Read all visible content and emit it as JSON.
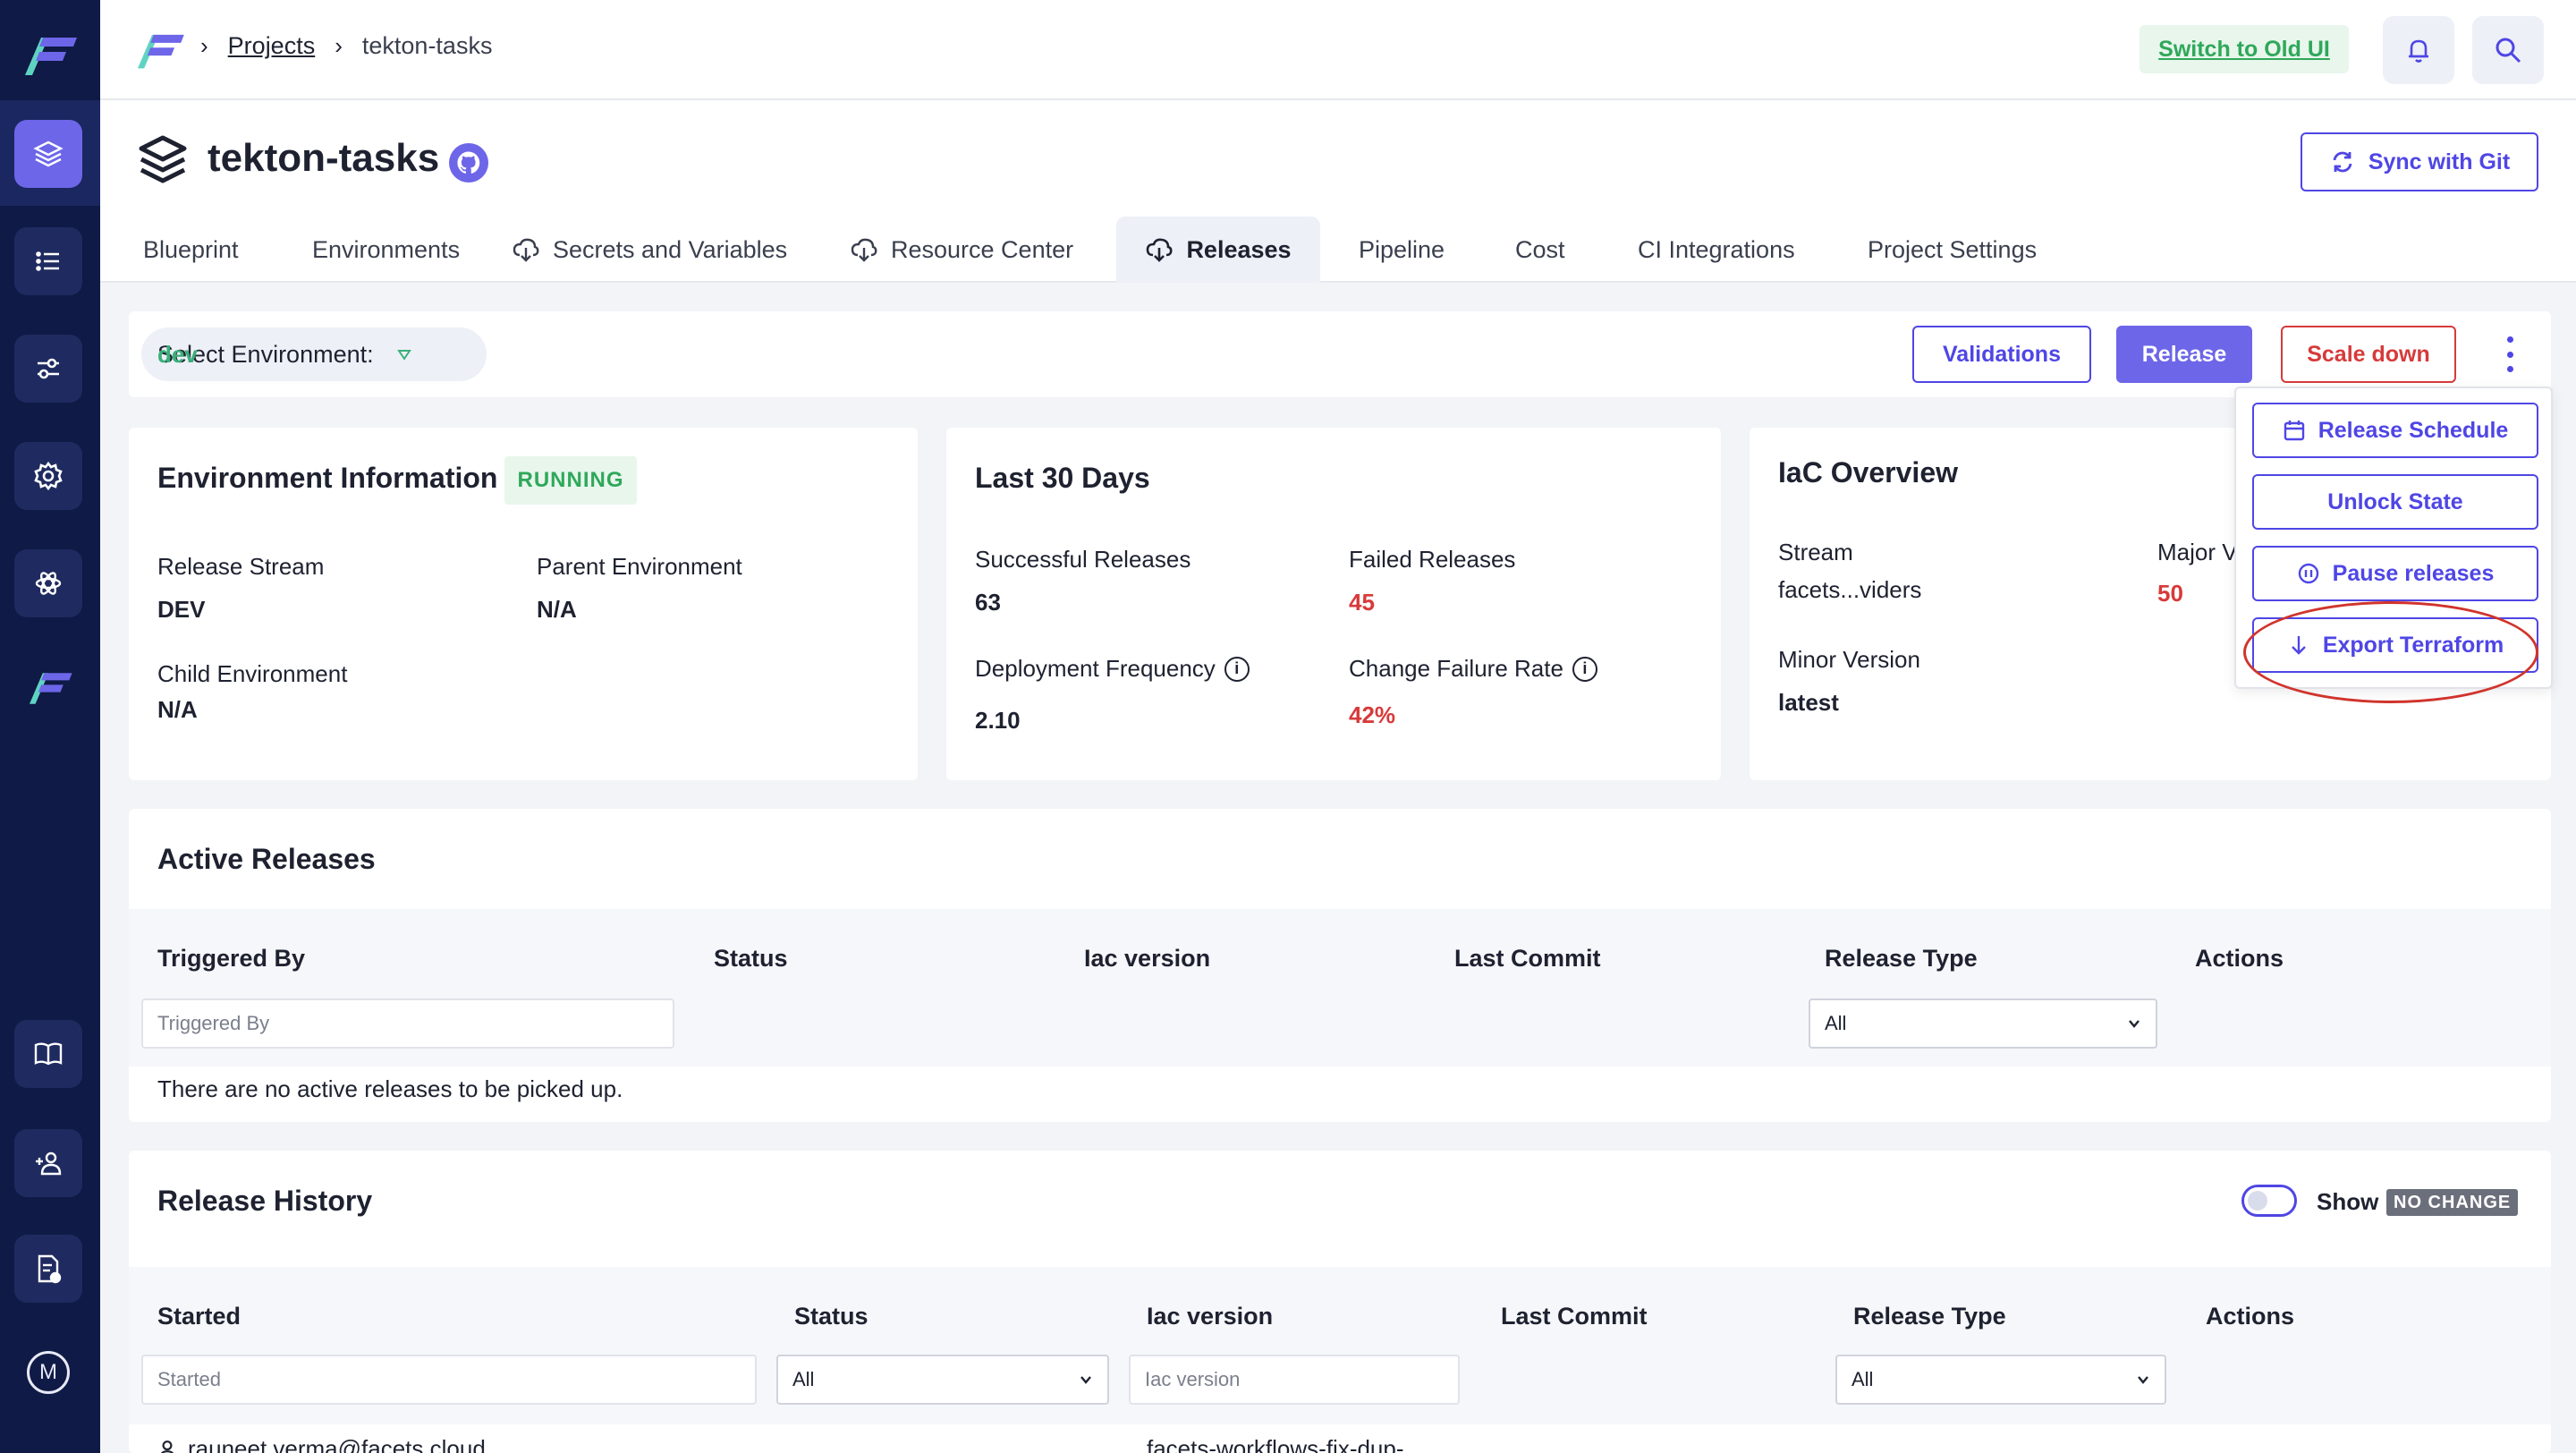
{
  "colors": {
    "accent": "#6d66e8",
    "primary": "#4f46e5",
    "danger": "#d73a3a",
    "success": "#2fa85a",
    "rail": "#0f1a46"
  },
  "breadcrumb": {
    "projects": "Projects",
    "current": "tekton-tasks"
  },
  "topbar": {
    "switch_old_ui": "Switch to Old UI"
  },
  "project": {
    "title": "tekton-tasks",
    "sync_label": "Sync with Git"
  },
  "tabs": [
    {
      "label": "Blueprint"
    },
    {
      "label": "Environments"
    },
    {
      "label": "Secrets and Variables"
    },
    {
      "label": "Resource Center"
    },
    {
      "label": "Releases"
    },
    {
      "label": "Pipeline"
    },
    {
      "label": "Cost"
    },
    {
      "label": "CI Integrations"
    },
    {
      "label": "Project Settings"
    }
  ],
  "env_bar": {
    "select_label": "Select Environment:",
    "selected": "dev",
    "validations": "Validations",
    "release": "Release",
    "scale_down": "Scale down"
  },
  "menu": {
    "release_schedule": "Release Schedule",
    "unlock_state": "Unlock State",
    "pause_releases": "Pause releases",
    "export_terraform": "Export Terraform"
  },
  "env_info": {
    "title": "Environment Information",
    "status": "RUNNING",
    "release_stream_label": "Release Stream",
    "release_stream": "DEV",
    "parent_env_label": "Parent Environment",
    "parent_env": "N/A",
    "child_env_label": "Child Environment",
    "child_env": "N/A"
  },
  "last30": {
    "title": "Last 30 Days",
    "successful_label": "Successful Releases",
    "successful": "63",
    "failed_label": "Failed Releases",
    "failed": "45",
    "deploy_freq_label": "Deployment Frequency",
    "deploy_freq": "2.10",
    "cfr_label": "Change Failure Rate",
    "cfr": "42%"
  },
  "iac": {
    "title": "IaC Overview",
    "stream_label": "Stream",
    "stream": "facets...viders",
    "major_label": "Major V",
    "major": "50",
    "minor_label": "Minor Version",
    "minor": "latest"
  },
  "active_releases": {
    "title": "Active Releases",
    "columns": [
      "Triggered By",
      "Status",
      "Iac version",
      "Last Commit",
      "Release Type",
      "Actions"
    ],
    "triggered_placeholder": "Triggered By",
    "release_type_value": "All",
    "empty": "There are no active releases to be picked up."
  },
  "release_history": {
    "title": "Release History",
    "show_label": "Show",
    "no_change": "NO CHANGE",
    "columns": [
      "Started",
      "Status",
      "Iac version",
      "Last Commit",
      "Release Type",
      "Actions"
    ],
    "started_placeholder": "Started",
    "status_value": "All",
    "iac_placeholder": "Iac version",
    "release_type_value": "All",
    "first_row_user": "rauneet.verma@facets.cloud",
    "first_row_iac": "facets-workflows-fix-dup-"
  },
  "rail_user_initial": "M"
}
